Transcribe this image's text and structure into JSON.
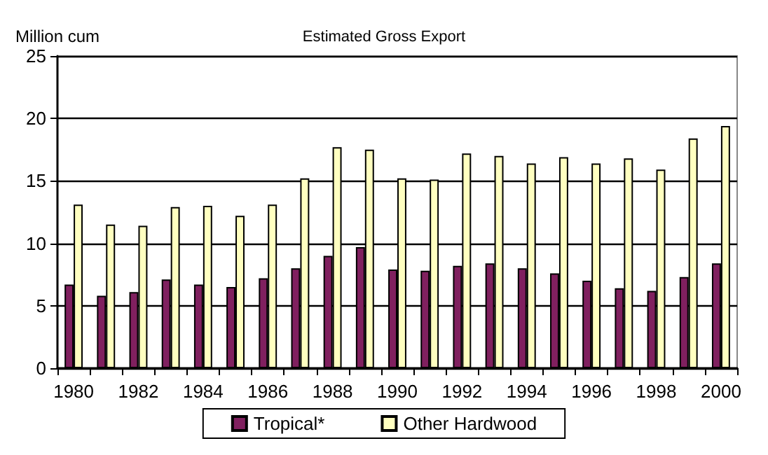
{
  "chart_data": {
    "type": "bar",
    "title": "Estimated Gross Export",
    "ylabel": "Million cum",
    "categories": [
      "1980",
      null,
      "1982",
      null,
      "1984",
      null,
      "1986",
      null,
      "1988",
      null,
      "1990",
      null,
      "1992",
      null,
      "1994",
      null,
      "1996",
      null,
      "1998",
      null,
      "2000"
    ],
    "series": [
      {
        "name": "Tropical*",
        "color": "#80205f",
        "values": [
          6.7,
          5.8,
          6.1,
          7.1,
          6.7,
          6.5,
          7.2,
          8.0,
          9.0,
          9.7,
          7.9,
          7.8,
          8.2,
          8.4,
          8.0,
          7.6,
          7.0,
          6.4,
          6.2,
          7.3,
          8.4
        ]
      },
      {
        "name": "Other Hardwood",
        "color": "#ffffc0",
        "values": [
          13.1,
          11.5,
          11.4,
          12.9,
          13.0,
          12.2,
          13.1,
          15.2,
          17.7,
          17.5,
          15.2,
          15.1,
          17.2,
          17.0,
          16.4,
          16.9,
          16.4,
          16.8,
          15.9,
          18.4,
          19.4
        ]
      }
    ],
    "ylim": [
      0,
      25
    ],
    "yticks": [
      0,
      5,
      10,
      15,
      20,
      25
    ],
    "grid": "y",
    "legend": "bottom"
  }
}
